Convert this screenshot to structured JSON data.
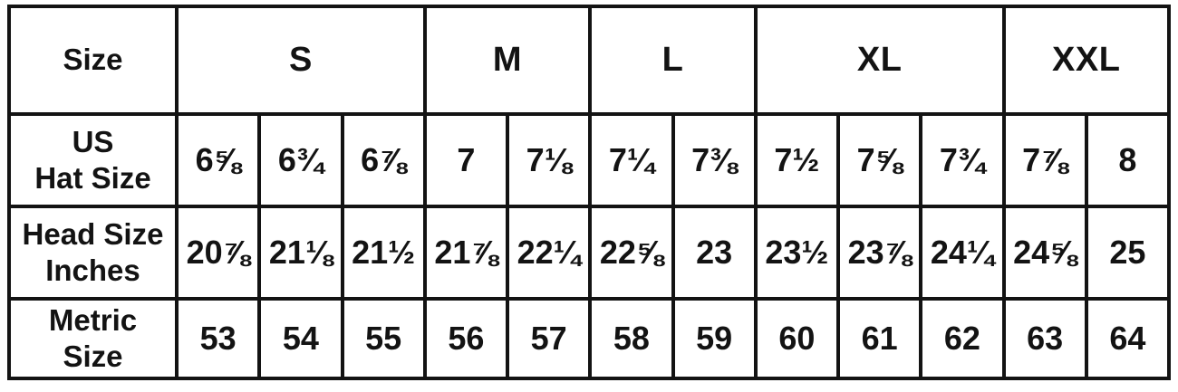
{
  "colors": {
    "background": "#ffffff",
    "border": "#131313",
    "text": "#131313"
  },
  "chart_data": {
    "type": "table",
    "header": {
      "label": "Size",
      "groups": [
        {
          "label": "S",
          "colspan": 3
        },
        {
          "label": "M",
          "colspan": 2
        },
        {
          "label": "L",
          "colspan": 2
        },
        {
          "label": "XL",
          "colspan": 3
        },
        {
          "label": "XXL",
          "colspan": 2
        }
      ]
    },
    "rows": [
      {
        "label": "US\nHat Size",
        "values": [
          "6⅝",
          "6¾",
          "6⅞",
          "7",
          "7⅛",
          "7¼",
          "7⅜",
          "7½",
          "7⅝",
          "7¾",
          "7⅞",
          "8"
        ]
      },
      {
        "label": "Head Size\nInches",
        "values": [
          "20⅞",
          "21⅛",
          "21½",
          "21⅞",
          "22¼",
          "22⅝",
          "23",
          "23½",
          "23⅞",
          "24¼",
          "24⅝",
          "25"
        ]
      },
      {
        "label": "Metric\nSize",
        "values": [
          "53",
          "54",
          "55",
          "56",
          "57",
          "58",
          "59",
          "60",
          "61",
          "62",
          "63",
          "64"
        ]
      }
    ]
  }
}
